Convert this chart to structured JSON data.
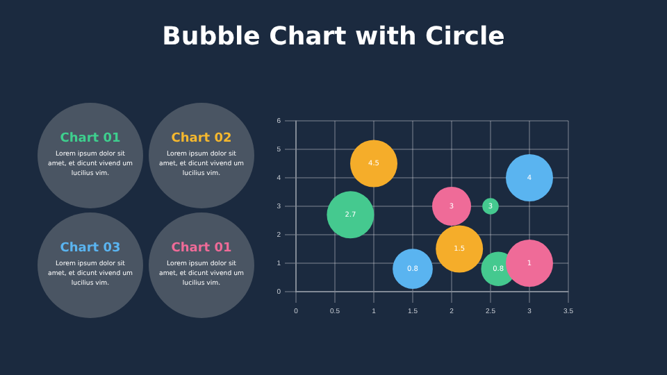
{
  "chart_data": [
    {
      "type": "other",
      "title": "Bubble Chart with Circle",
      "categories": [
        "Chart 01",
        "Chart 02",
        "Chart 03",
        "Chart 01"
      ],
      "annotations": [
        "Lorem ipsum dolor sit amet, et dicunt vivend um lucilius vim.",
        "Lorem ipsum dolor sit amet, et dicunt vivend um lucilius vim.",
        "Lorem ipsum dolor sit amet, et dicunt vivend um lucilius vim.",
        "Lorem ipsum dolor sit amet, et dicunt vivend um lucilius vim."
      ]
    },
    {
      "type": "bubble",
      "x": [
        1,
        0.7,
        2,
        2.5,
        3,
        2.1,
        1.5,
        2.6,
        3
      ],
      "values": [
        4.5,
        2.7,
        3,
        3,
        4,
        1.5,
        0.8,
        0.8,
        1
      ],
      "sizes": [
        1,
        1,
        0.68,
        0.12,
        1,
        1,
        0.72,
        0.53,
        1
      ],
      "colors": [
        "#f5ad2a",
        "#45c98f",
        "#ef6b98",
        "#45c98f",
        "#5ab4f0",
        "#f5ad2a",
        "#5ab4f0",
        "#45c98f",
        "#ef6b98"
      ],
      "xlim": [
        0,
        3.5
      ],
      "xticks": [
        0,
        0.5,
        1,
        1.5,
        2,
        2.5,
        3,
        3.5
      ],
      "ylim": [
        0,
        6
      ],
      "yticks": [
        0,
        1,
        2,
        3,
        4,
        5,
        6
      ],
      "grid": true,
      "data_labels": true
    }
  ]
}
